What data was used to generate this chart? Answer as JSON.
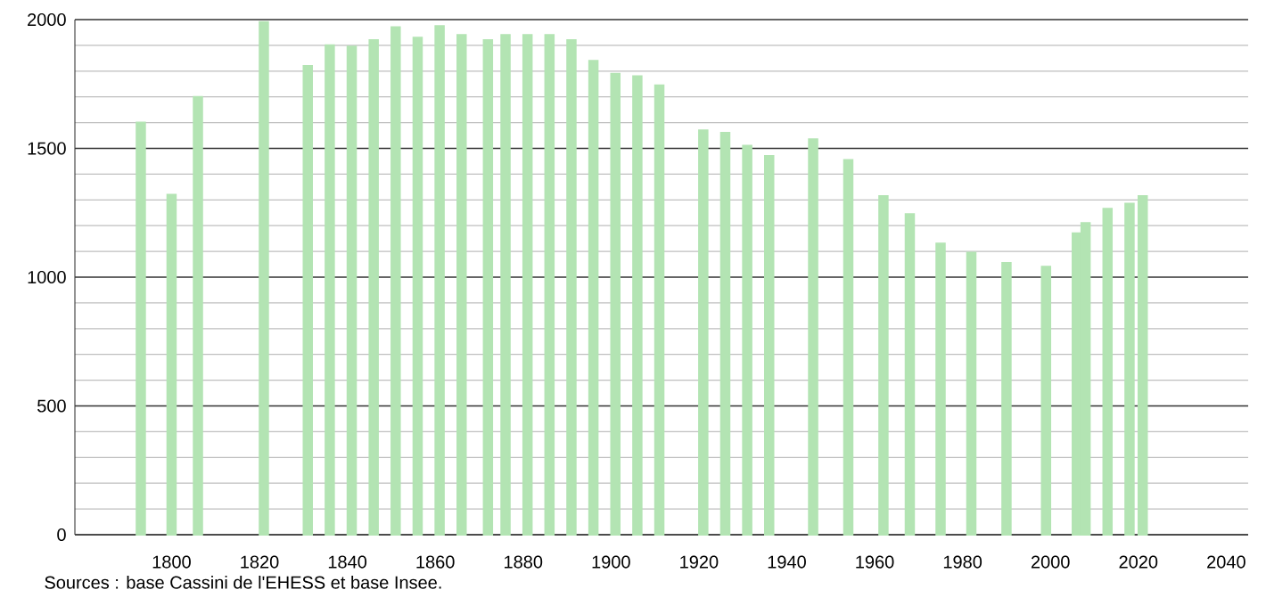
{
  "chart_data": {
    "type": "bar",
    "color": "#b3e4b3",
    "x": [
      1793,
      1800,
      1806,
      1821,
      1831,
      1836,
      1841,
      1846,
      1851,
      1856,
      1861,
      1866,
      1872,
      1876,
      1881,
      1886,
      1891,
      1896,
      1901,
      1906,
      1911,
      1921,
      1926,
      1931,
      1936,
      1946,
      1954,
      1962,
      1968,
      1975,
      1982,
      1990,
      1999,
      2006,
      2008,
      2013,
      2018,
      2021
    ],
    "values": [
      1600,
      1320,
      1700,
      1990,
      1820,
      1900,
      1895,
      1920,
      1970,
      1930,
      1975,
      1940,
      1920,
      1940,
      1940,
      1940,
      1920,
      1840,
      1790,
      1780,
      1745,
      1570,
      1560,
      1510,
      1470,
      1535,
      1455,
      1315,
      1245,
      1130,
      1095,
      1055,
      1040,
      1170,
      1210,
      1265,
      1285,
      1315
    ],
    "xlim": [
      1778,
      2045
    ],
    "ylim": [
      0,
      2000
    ],
    "xticks": [
      1800,
      1820,
      1840,
      1860,
      1880,
      1900,
      1920,
      1940,
      1960,
      1980,
      2000,
      2020,
      2040
    ],
    "yticks": [
      0,
      500,
      1000,
      1500,
      2000
    ],
    "grid": "y",
    "annotations": [
      "Sources : base Cassini de l'EHESS et base Insee."
    ]
  }
}
